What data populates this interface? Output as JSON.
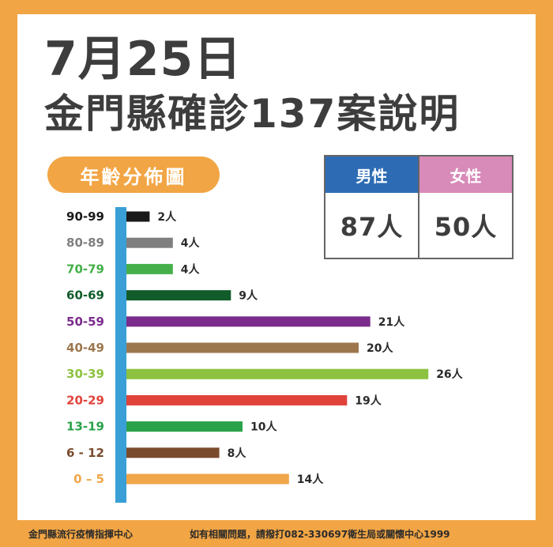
{
  "title": {
    "line1": "7月25日",
    "line2": "金門縣確診137案說明"
  },
  "section_label": "年齡分佈圖",
  "gender": {
    "male": {
      "label": "男性",
      "value": "87人",
      "color": "#2d6cb4"
    },
    "female": {
      "label": "女性",
      "value": "50人",
      "color": "#d88ab8"
    }
  },
  "chart_data": {
    "type": "bar",
    "orientation": "horizontal",
    "title": "年齡分佈圖",
    "unit": "人",
    "categories": [
      "90-99",
      "80-89",
      "70-79",
      "60-69",
      "50-59",
      "40-49",
      "30-39",
      "20-29",
      "13-19",
      "6-12",
      "0-5"
    ],
    "category_labels": [
      "90-99",
      "80-89",
      "70-79",
      "60-69",
      "50-59",
      "40-49",
      "30-39",
      "20-29",
      "13-19",
      "6 - 12",
      "0 – 5"
    ],
    "values": [
      2,
      4,
      4,
      9,
      21,
      20,
      26,
      19,
      10,
      8,
      14
    ],
    "value_labels": [
      "2人",
      "4人",
      "4人",
      "9人",
      "21人",
      "20人",
      "26人",
      "19人",
      "10人",
      "8人",
      "14人"
    ],
    "colors": [
      "#1a1a1a",
      "#7f7f7f",
      "#45b04a",
      "#125c2c",
      "#7b2b8c",
      "#9c774e",
      "#8cc23f",
      "#e0433a",
      "#2aa24a",
      "#7b4b2e",
      "#f0a64a"
    ],
    "axis_color": "#3a9fd6",
    "grid": false,
    "legend": "none"
  },
  "footer": {
    "org": "金門縣流行疫情指揮中心",
    "contact": "如有相關問題，請撥打082-330697衛生局或關懷中心1999"
  }
}
